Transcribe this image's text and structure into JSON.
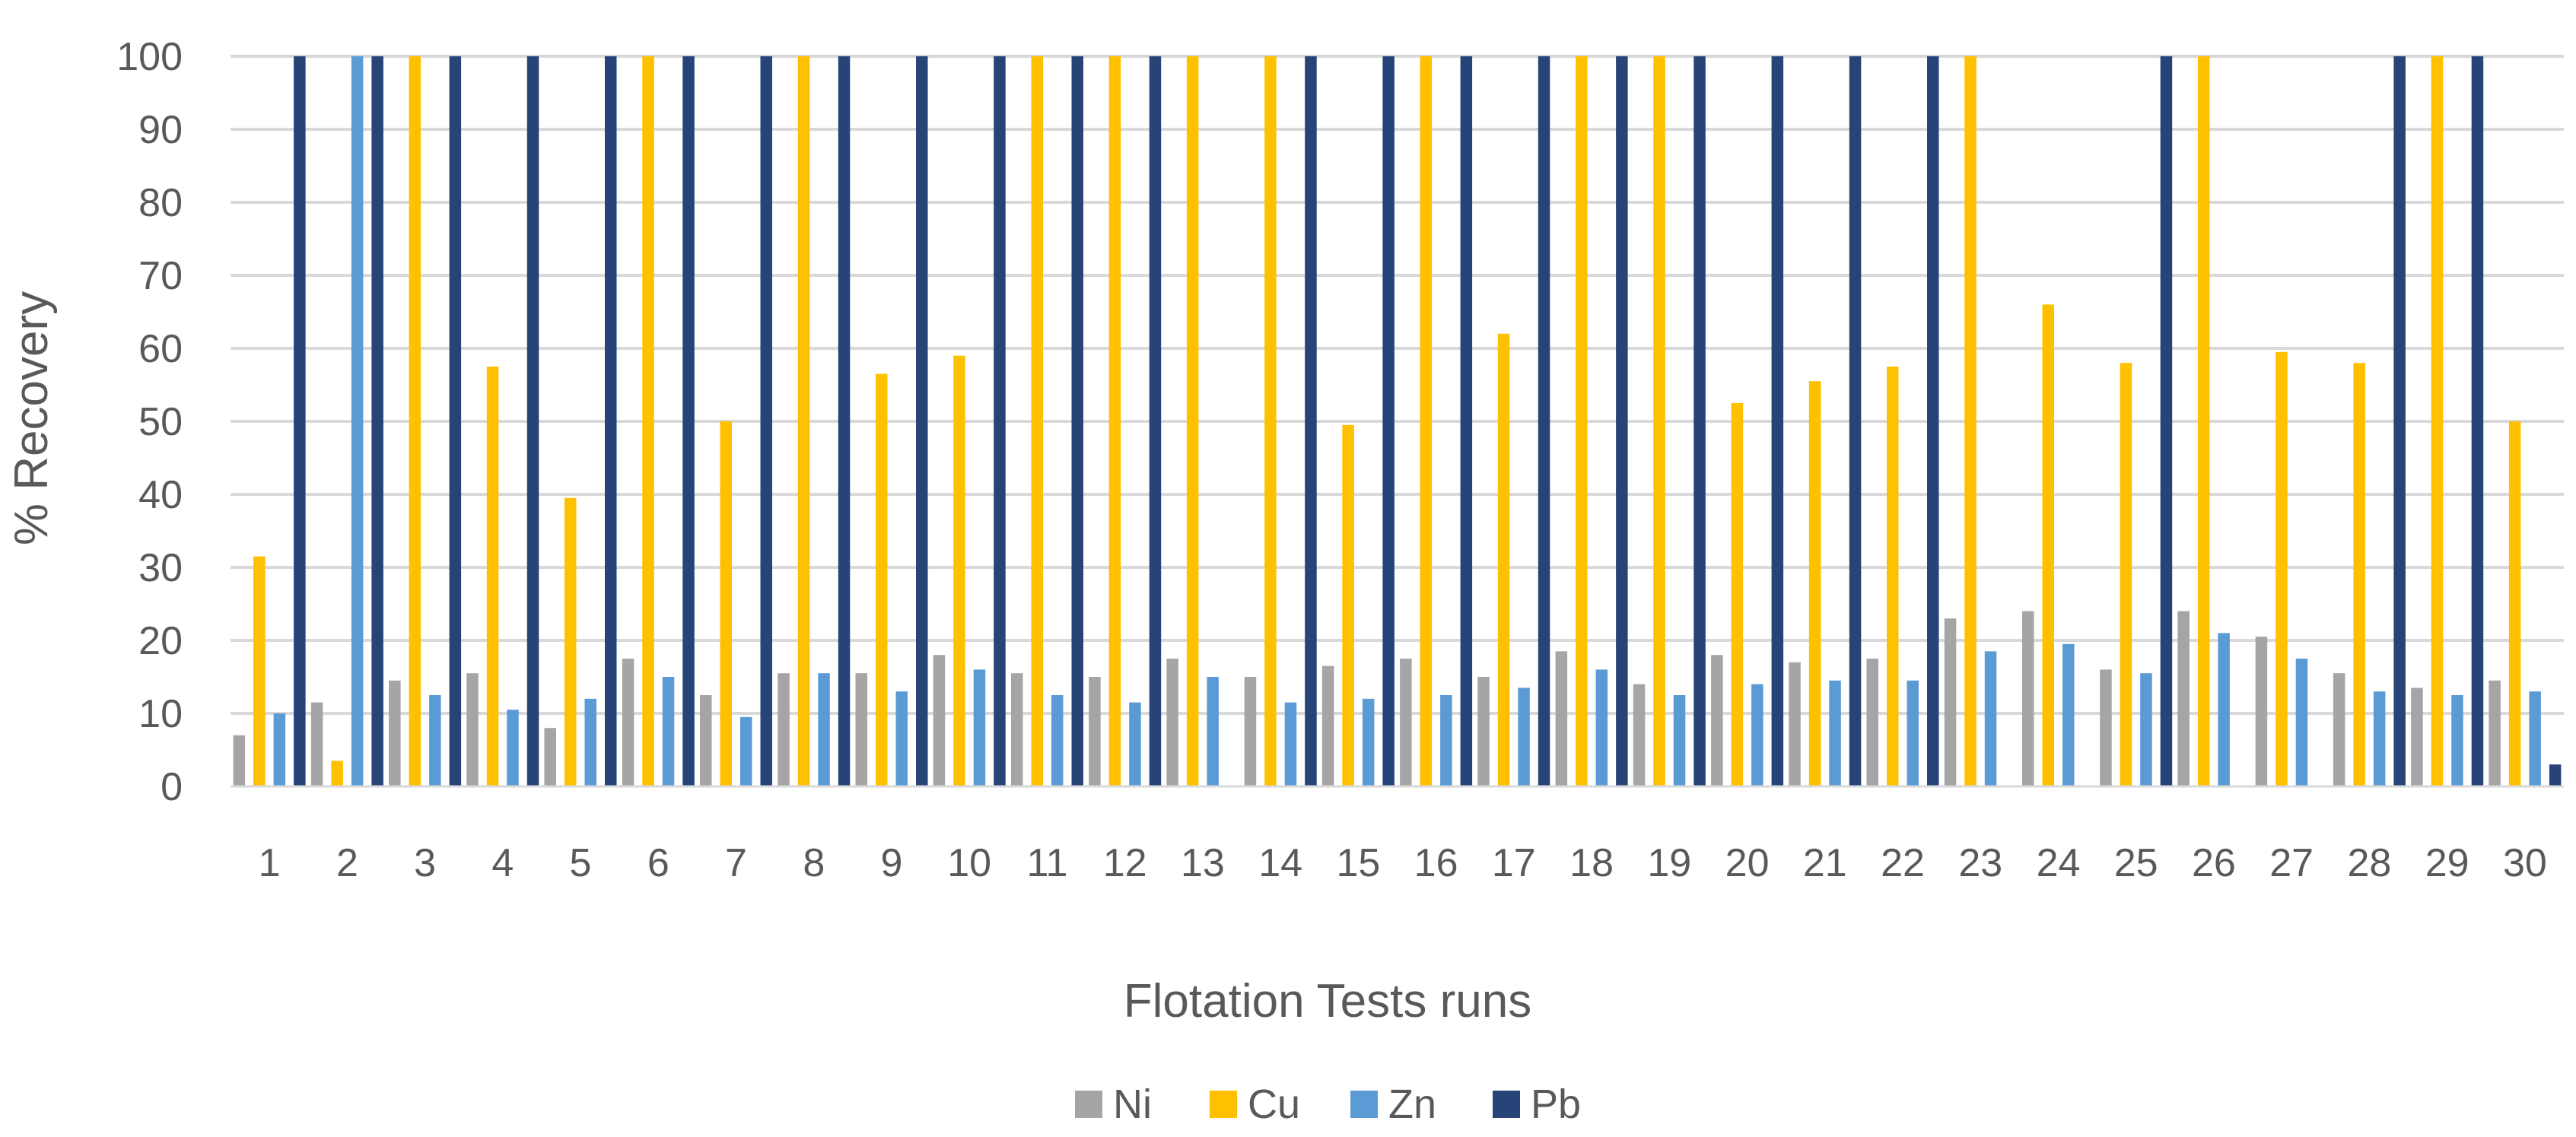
{
  "chart_data": {
    "type": "bar",
    "xlabel": "Flotation Tests runs",
    "ylabel": "% Recovery",
    "ylim": [
      0,
      100
    ],
    "yticks": [
      0,
      10,
      20,
      30,
      40,
      50,
      60,
      70,
      80,
      90,
      100
    ],
    "grid": true,
    "legend_position": "bottom",
    "categories": [
      "1",
      "2",
      "3",
      "4",
      "5",
      "6",
      "7",
      "8",
      "9",
      "10",
      "11",
      "12",
      "13",
      "14",
      "15",
      "16",
      "17",
      "18",
      "19",
      "20",
      "21",
      "22",
      "23",
      "24",
      "25",
      "26",
      "27",
      "28",
      "29",
      "30"
    ],
    "series": [
      {
        "name": "Ni",
        "color": "#A5A5A5",
        "values": [
          7,
          11.5,
          14.5,
          15.5,
          8,
          17.5,
          12.5,
          15.5,
          15.5,
          18,
          15.5,
          15,
          17.5,
          15,
          16.5,
          17.5,
          15,
          18.5,
          14,
          18,
          17,
          17.5,
          23,
          24,
          16,
          24,
          20.5,
          15.5,
          13.5,
          14.5
        ]
      },
      {
        "name": "Cu",
        "color": "#FFC000",
        "values": [
          31.5,
          3.5,
          100,
          57.5,
          39.5,
          100,
          50,
          100,
          56.5,
          59,
          100,
          100,
          100,
          100,
          49.5,
          100,
          62,
          100,
          100,
          52.5,
          55.5,
          57.5,
          100,
          66,
          58,
          100,
          59.5,
          58,
          100,
          50
        ]
      },
      {
        "name": "Zn",
        "color": "#5B9BD5",
        "values": [
          10,
          100,
          12.5,
          10.5,
          12,
          15,
          9.5,
          15.5,
          13,
          16,
          12.5,
          11.5,
          15,
          11.5,
          12,
          12.5,
          13.5,
          16,
          12.5,
          14,
          14.5,
          14.5,
          18.5,
          19.5,
          15.5,
          21,
          17.5,
          13,
          12.5,
          13
        ]
      },
      {
        "name": "Pb",
        "color": "#264478",
        "values": [
          100,
          100,
          100,
          100,
          100,
          100,
          100,
          100,
          100,
          100,
          100,
          100,
          0,
          100,
          100,
          100,
          100,
          100,
          100,
          100,
          100,
          100,
          0,
          0,
          100,
          0,
          0,
          100,
          100,
          3
        ]
      }
    ]
  }
}
